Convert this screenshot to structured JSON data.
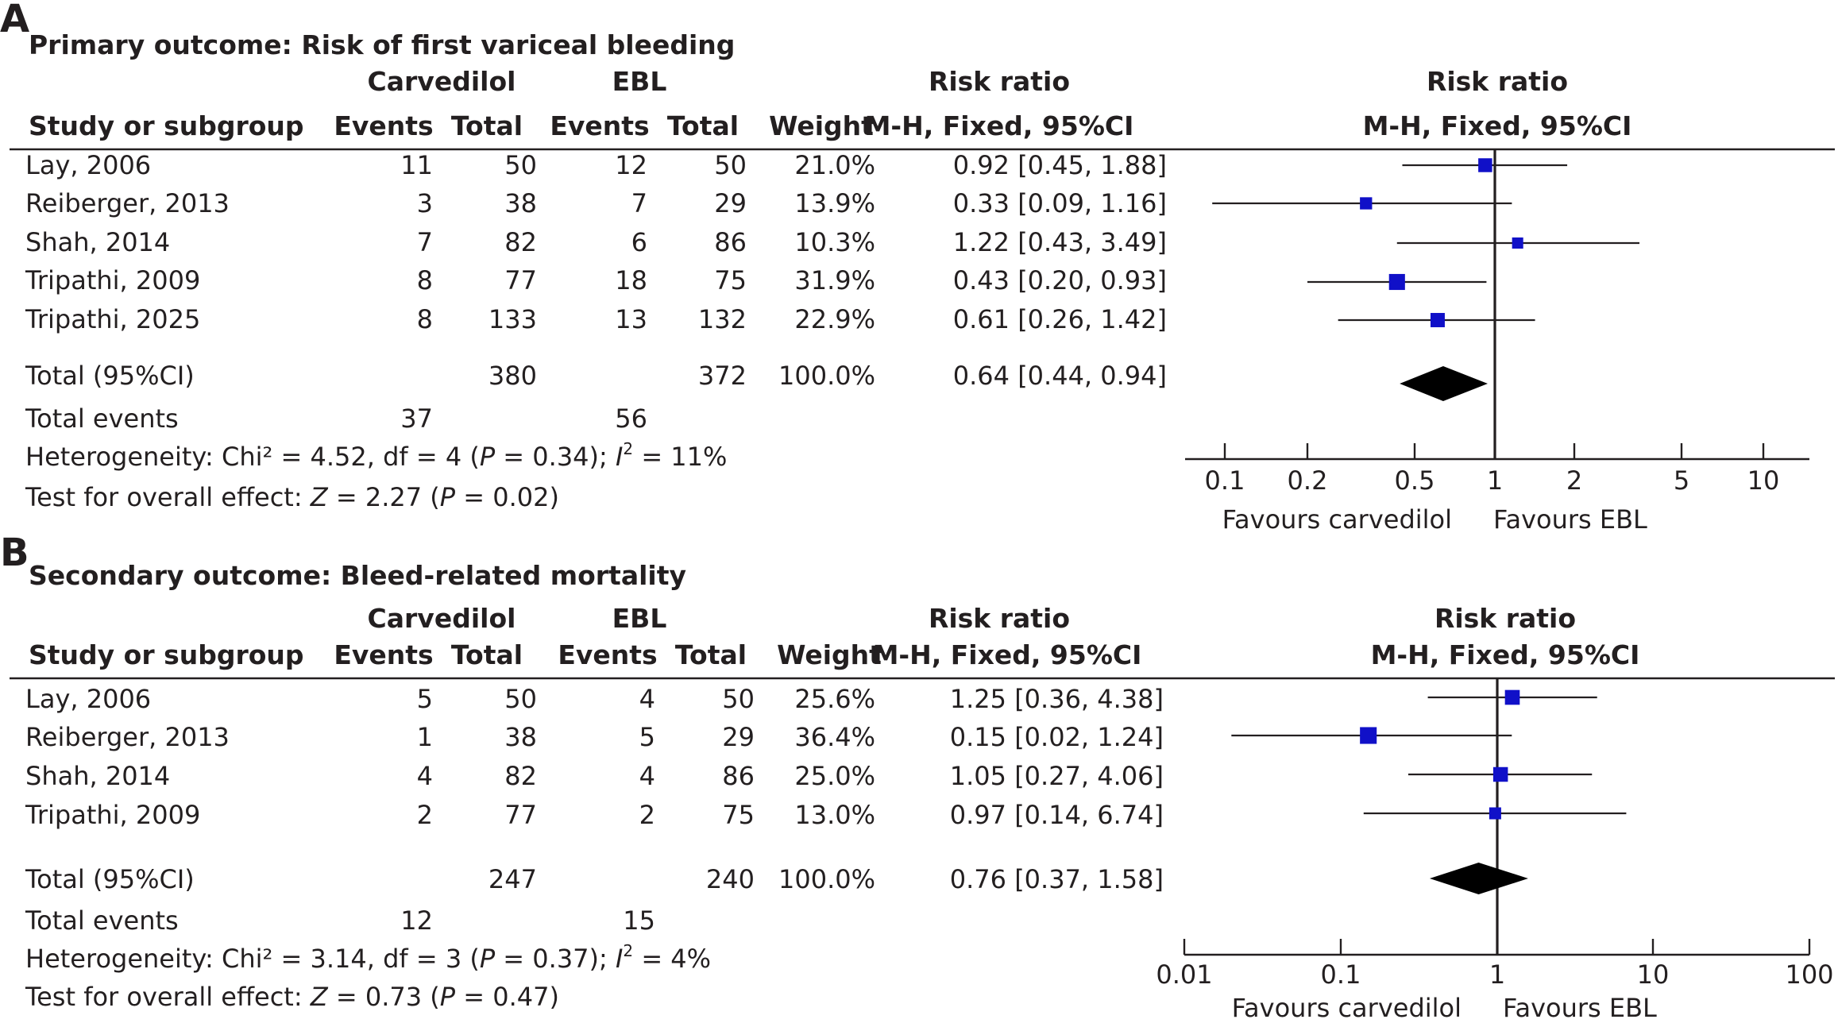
{
  "colors": {
    "marker": "#1010c8",
    "diamond": "#000000",
    "text": "#231f20",
    "background": "#ffffff"
  },
  "headers": {
    "study": "Study or subgroup",
    "group1": "Carvedilol",
    "group2": "EBL",
    "events": "Events",
    "total": "Total",
    "weight": "Weight",
    "rr": "Risk ratio",
    "method": "M-H, Fixed, 95%CI"
  },
  "chart_data": [
    {
      "type": "forest",
      "panel_label": "A",
      "title": "Primary outcome: Risk of first variceal bleeding",
      "scale": "log",
      "xlim": [
        0.07,
        15
      ],
      "ticks": [
        0.1,
        0.2,
        0.5,
        1,
        2,
        5,
        10
      ],
      "tick_labels": [
        "0.1",
        "0.2",
        "0.5",
        "1",
        "2",
        "5",
        "10"
      ],
      "null_value": 1,
      "favours_left": "Favours carvedilol",
      "favours_right": "Favours EBL",
      "studies": [
        {
          "name": "Lay, 2006",
          "e1": "11",
          "t1": "50",
          "e2": "12",
          "t2": "50",
          "weight": "21.0%",
          "rr_text": "0.92 [0.45, 1.88]",
          "rr": 0.92,
          "lo": 0.45,
          "hi": 1.88,
          "w": 21.0
        },
        {
          "name": "Reiberger, 2013",
          "e1": "3",
          "t1": "38",
          "e2": "7",
          "t2": "29",
          "weight": "13.9%",
          "rr_text": "0.33 [0.09, 1.16]",
          "rr": 0.33,
          "lo": 0.09,
          "hi": 1.16,
          "w": 13.9
        },
        {
          "name": "Shah, 2014",
          "e1": "7",
          "t1": "82",
          "e2": "6",
          "t2": "86",
          "weight": "10.3%",
          "rr_text": "1.22 [0.43, 3.49]",
          "rr": 1.22,
          "lo": 0.43,
          "hi": 3.49,
          "w": 10.3
        },
        {
          "name": "Tripathi, 2009",
          "e1": "8",
          "t1": "77",
          "e2": "18",
          "t2": "75",
          "weight": "31.9%",
          "rr_text": "0.43 [0.20, 0.93]",
          "rr": 0.43,
          "lo": 0.2,
          "hi": 0.93,
          "w": 31.9
        },
        {
          "name": "Tripathi, 2025",
          "e1": "8",
          "t1": "133",
          "e2": "13",
          "t2": "132",
          "weight": "22.9%",
          "rr_text": "0.61 [0.26, 1.42]",
          "rr": 0.61,
          "lo": 0.26,
          "hi": 1.42,
          "w": 22.9
        }
      ],
      "total": {
        "name": "Total (95%CI)",
        "t1": "380",
        "t2": "372",
        "weight": "100.0%",
        "rr_text": "0.64 [0.44, 0.94]",
        "rr": 0.64,
        "lo": 0.44,
        "hi": 0.94
      },
      "total_events": {
        "label": "Total events",
        "e1": "37",
        "e2": "56"
      },
      "heterogeneity": {
        "prefix": "Heterogeneity: Chi² = 4.52, df = 4 (",
        "p": "P",
        "mid": " = 0.34); ",
        "i": "I",
        "sup": "2",
        "suffix": " = 11%"
      },
      "overall_effect": {
        "prefix": "Test for overall effect: ",
        "z": "Z",
        "mid": " = 2.27 (",
        "p": "P",
        "suffix": " = 0.02)"
      }
    },
    {
      "type": "forest",
      "panel_label": "B",
      "title": "Secondary outcome: Bleed-related mortality",
      "scale": "log",
      "xlim": [
        0.01,
        100
      ],
      "ticks": [
        0.01,
        0.1,
        1,
        10,
        100
      ],
      "tick_labels": [
        "0.01",
        "0.1",
        "1",
        "10",
        "100"
      ],
      "null_value": 1,
      "favours_left": "Favours carvedilol",
      "favours_right": "Favours EBL",
      "studies": [
        {
          "name": "Lay, 2006",
          "e1": "5",
          "t1": "50",
          "e2": "4",
          "t2": "50",
          "weight": "25.6%",
          "rr_text": "1.25 [0.36, 4.38]",
          "rr": 1.25,
          "lo": 0.36,
          "hi": 4.38,
          "w": 25.6
        },
        {
          "name": "Reiberger, 2013",
          "e1": "1",
          "t1": "38",
          "e2": "5",
          "t2": "29",
          "weight": "36.4%",
          "rr_text": "0.15 [0.02, 1.24]",
          "rr": 0.15,
          "lo": 0.02,
          "hi": 1.24,
          "w": 36.4
        },
        {
          "name": "Shah, 2014",
          "e1": "4",
          "t1": "82",
          "e2": "4",
          "t2": "86",
          "weight": "25.0%",
          "rr_text": "1.05 [0.27, 4.06]",
          "rr": 1.05,
          "lo": 0.27,
          "hi": 4.06,
          "w": 25.0
        },
        {
          "name": "Tripathi, 2009",
          "e1": "2",
          "t1": "77",
          "e2": "2",
          "t2": "75",
          "weight": "13.0%",
          "rr_text": "0.97 [0.14, 6.74]",
          "rr": 0.97,
          "lo": 0.14,
          "hi": 6.74,
          "w": 13.0
        }
      ],
      "total": {
        "name": "Total (95%CI)",
        "t1": "247",
        "t2": "240",
        "weight": "100.0%",
        "rr_text": "0.76 [0.37, 1.58]",
        "rr": 0.76,
        "lo": 0.37,
        "hi": 1.58
      },
      "total_events": {
        "label": "Total events",
        "e1": "12",
        "e2": "15"
      },
      "heterogeneity": {
        "prefix": "Heterogeneity: Chi² = 3.14, df = 3 (",
        "p": "P",
        "mid": " = 0.37); ",
        "i": "I",
        "sup": "2",
        "suffix": " = 4%"
      },
      "overall_effect": {
        "prefix": "Test for overall effect: ",
        "z": "Z",
        "mid": " = 0.73 (",
        "p": "P",
        "suffix": " = 0.47)"
      }
    }
  ]
}
